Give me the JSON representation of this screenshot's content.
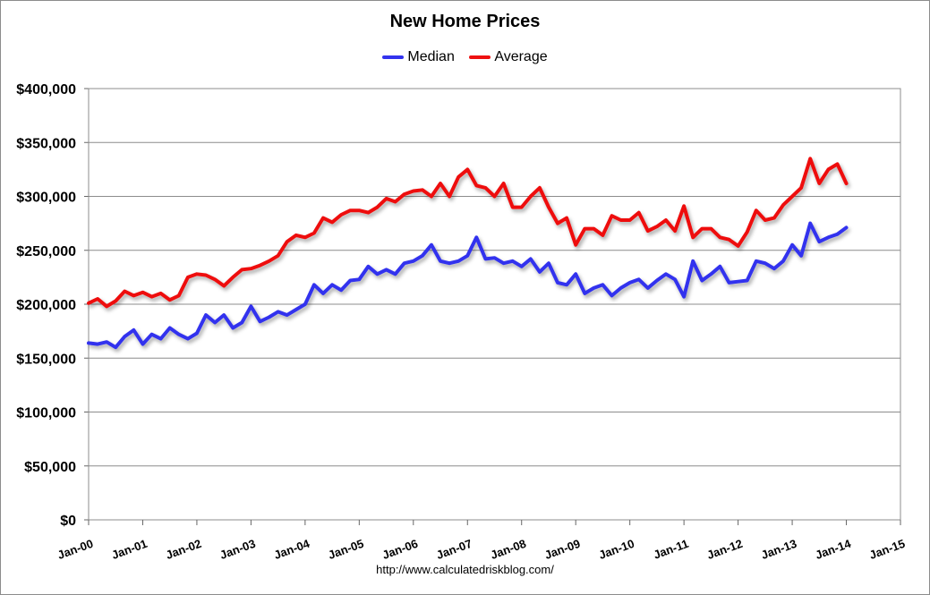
{
  "chart_data": {
    "type": "line",
    "title": "New Home Prices",
    "xlabel": "",
    "ylabel": "",
    "ylim": [
      0,
      400000
    ],
    "xlim": [
      "2000-01",
      "2015-01"
    ],
    "y_ticks": [
      "$0",
      "$50,000",
      "$100,000",
      "$150,000",
      "$200,000",
      "$250,000",
      "$300,000",
      "$350,000",
      "$400,000"
    ],
    "x_ticks": [
      "Jan-00",
      "Jan-01",
      "Jan-02",
      "Jan-03",
      "Jan-04",
      "Jan-05",
      "Jan-06",
      "Jan-07",
      "Jan-08",
      "Jan-09",
      "Jan-10",
      "Jan-11",
      "Jan-12",
      "Jan-13",
      "Jan-14",
      "Jan-15"
    ],
    "grid": true,
    "legend_position": "top",
    "series": [
      {
        "name": "Median",
        "color": "#3333ee",
        "x": [
          "2000-01",
          "2000-03",
          "2000-05",
          "2000-07",
          "2000-09",
          "2000-11",
          "2001-01",
          "2001-03",
          "2001-05",
          "2001-07",
          "2001-09",
          "2001-11",
          "2002-01",
          "2002-03",
          "2002-05",
          "2002-07",
          "2002-09",
          "2002-11",
          "2003-01",
          "2003-03",
          "2003-05",
          "2003-07",
          "2003-09",
          "2003-11",
          "2004-01",
          "2004-03",
          "2004-05",
          "2004-07",
          "2004-09",
          "2004-11",
          "2005-01",
          "2005-03",
          "2005-05",
          "2005-07",
          "2005-09",
          "2005-11",
          "2006-01",
          "2006-03",
          "2006-05",
          "2006-07",
          "2006-09",
          "2006-11",
          "2007-01",
          "2007-03",
          "2007-05",
          "2007-07",
          "2007-09",
          "2007-11",
          "2008-01",
          "2008-03",
          "2008-05",
          "2008-07",
          "2008-09",
          "2008-11",
          "2009-01",
          "2009-03",
          "2009-05",
          "2009-07",
          "2009-09",
          "2009-11",
          "2010-01",
          "2010-03",
          "2010-05",
          "2010-07",
          "2010-09",
          "2010-11",
          "2011-01",
          "2011-03",
          "2011-05",
          "2011-07",
          "2011-09",
          "2011-11",
          "2012-01",
          "2012-03",
          "2012-05",
          "2012-07",
          "2012-09",
          "2012-11",
          "2013-01",
          "2013-03",
          "2013-05",
          "2013-07",
          "2013-09",
          "2013-11",
          "2014-01"
        ],
        "values": [
          164000,
          163000,
          165000,
          160000,
          170000,
          176000,
          163000,
          172000,
          168000,
          178000,
          172000,
          168000,
          173000,
          190000,
          183000,
          190000,
          178000,
          183000,
          198000,
          184000,
          188000,
          193000,
          190000,
          195000,
          200000,
          218000,
          210000,
          218000,
          213000,
          222000,
          223000,
          235000,
          228000,
          232000,
          228000,
          238000,
          240000,
          245000,
          255000,
          240000,
          238000,
          240000,
          245000,
          262000,
          242000,
          243000,
          238000,
          240000,
          235000,
          242000,
          230000,
          238000,
          220000,
          218000,
          228000,
          210000,
          215000,
          218000,
          208000,
          215000,
          220000,
          223000,
          215000,
          222000,
          228000,
          223000,
          207000,
          240000,
          222000,
          228000,
          235000,
          220000,
          221000,
          222000,
          240000,
          238000,
          233000,
          240000,
          255000,
          245000,
          275000,
          258000,
          262000,
          265000,
          271000
        ]
      },
      {
        "name": "Average",
        "color": "#ee1111",
        "x": [
          "2000-01",
          "2000-03",
          "2000-05",
          "2000-07",
          "2000-09",
          "2000-11",
          "2001-01",
          "2001-03",
          "2001-05",
          "2001-07",
          "2001-09",
          "2001-11",
          "2002-01",
          "2002-03",
          "2002-05",
          "2002-07",
          "2002-09",
          "2002-11",
          "2003-01",
          "2003-03",
          "2003-05",
          "2003-07",
          "2003-09",
          "2003-11",
          "2004-01",
          "2004-03",
          "2004-05",
          "2004-07",
          "2004-09",
          "2004-11",
          "2005-01",
          "2005-03",
          "2005-05",
          "2005-07",
          "2005-09",
          "2005-11",
          "2006-01",
          "2006-03",
          "2006-05",
          "2006-07",
          "2006-09",
          "2006-11",
          "2007-01",
          "2007-03",
          "2007-05",
          "2007-07",
          "2007-09",
          "2007-11",
          "2008-01",
          "2008-03",
          "2008-05",
          "2008-07",
          "2008-09",
          "2008-11",
          "2009-01",
          "2009-03",
          "2009-05",
          "2009-07",
          "2009-09",
          "2009-11",
          "2010-01",
          "2010-03",
          "2010-05",
          "2010-07",
          "2010-09",
          "2010-11",
          "2011-01",
          "2011-03",
          "2011-05",
          "2011-07",
          "2011-09",
          "2011-11",
          "2012-01",
          "2012-03",
          "2012-05",
          "2012-07",
          "2012-09",
          "2012-11",
          "2013-01",
          "2013-03",
          "2013-05",
          "2013-07",
          "2013-09",
          "2013-11",
          "2014-01"
        ],
        "values": [
          201000,
          205000,
          198000,
          203000,
          212000,
          208000,
          211000,
          207000,
          210000,
          204000,
          208000,
          225000,
          228000,
          227000,
          223000,
          217000,
          225000,
          232000,
          233000,
          236000,
          240000,
          245000,
          258000,
          264000,
          262000,
          266000,
          280000,
          276000,
          283000,
          287000,
          287000,
          285000,
          290000,
          298000,
          295000,
          302000,
          305000,
          306000,
          300000,
          312000,
          300000,
          318000,
          325000,
          310000,
          308000,
          300000,
          312000,
          290000,
          290000,
          300000,
          308000,
          290000,
          275000,
          280000,
          255000,
          270000,
          270000,
          264000,
          282000,
          278000,
          278000,
          285000,
          268000,
          272000,
          278000,
          268000,
          291000,
          262000,
          270000,
          270000,
          262000,
          260000,
          254000,
          267000,
          287000,
          278000,
          280000,
          292000,
          300000,
          308000,
          335000,
          312000,
          325000,
          330000,
          312000
        ]
      }
    ]
  },
  "legend": {
    "median_label": "Median",
    "average_label": "Average"
  },
  "source": "http://www.calculatedriskblog.com/"
}
